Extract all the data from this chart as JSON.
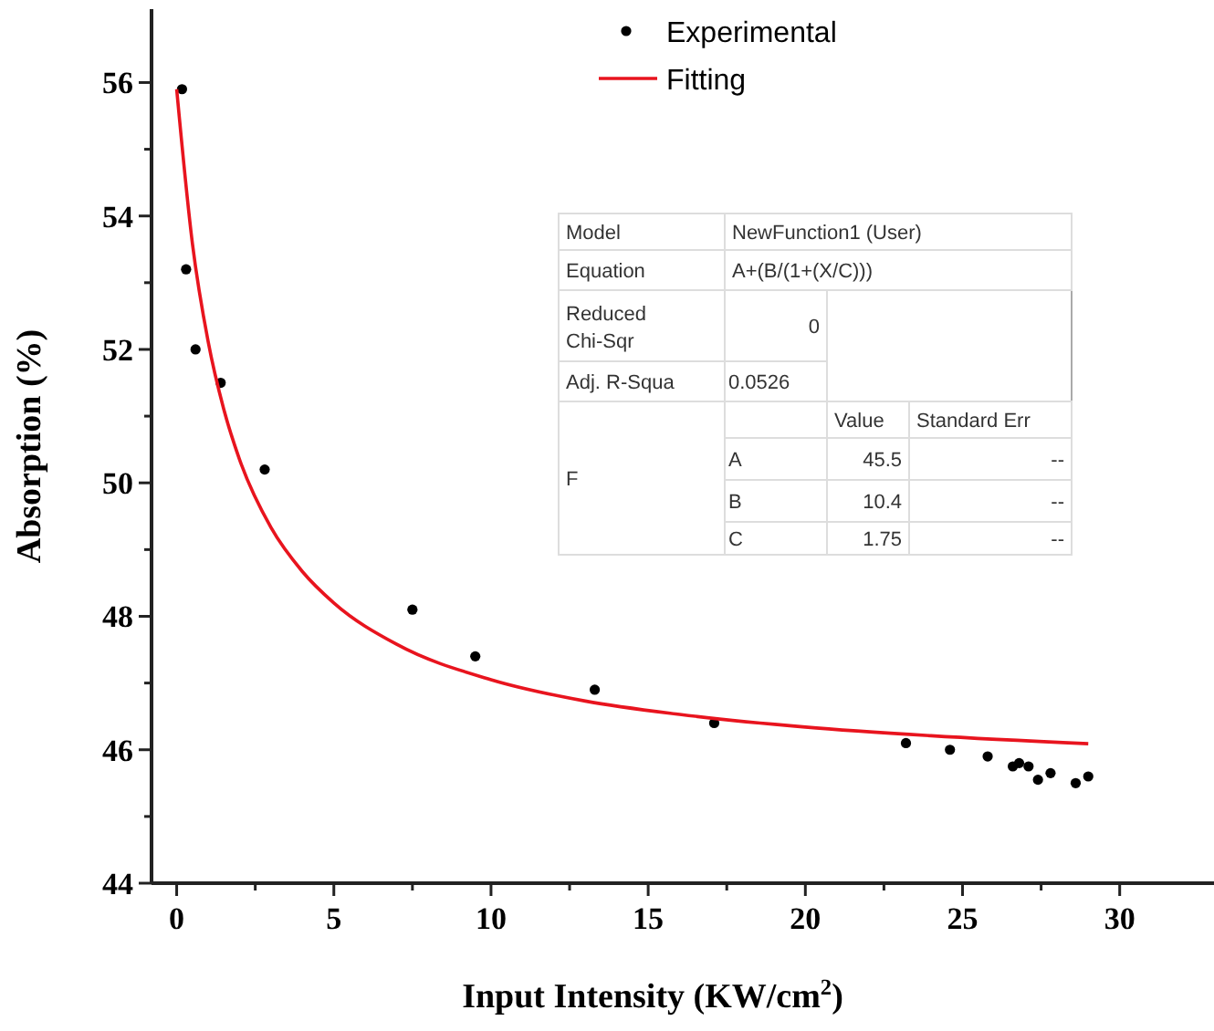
{
  "chart_data": {
    "type": "scatter",
    "xlabel": "Input Intensity (KW/cm$^{2}$)",
    "ylabel": "Absorption (%)",
    "xlim": [
      -0.8,
      33
    ],
    "ylim": [
      44,
      57.1
    ],
    "xticks": [
      0,
      {
        "value": 2.5,
        "label": null
      },
      5,
      {
        "value": 7.5,
        "label": null
      },
      10,
      {
        "value": 12.5,
        "label": null
      },
      15,
      {
        "value": 17.5,
        "label": null
      },
      20,
      {
        "value": 22.5,
        "label": null
      },
      25,
      {
        "value": 27.5,
        "label": null
      },
      30
    ],
    "yticks": [
      44,
      {
        "value": 45,
        "label": null
      },
      46,
      {
        "value": 47,
        "label": null
      },
      48,
      {
        "value": 49,
        "label": null
      },
      50,
      {
        "value": 51,
        "label": null
      },
      52,
      {
        "value": 53,
        "label": null
      },
      54,
      {
        "value": 55,
        "label": null
      },
      56
    ],
    "grid": false,
    "legend": "top",
    "marker": "circle",
    "series": [
      {
        "name": "Experimental",
        "color": "#000000",
        "x": [
          0.17,
          0.3,
          0.6,
          1.4,
          2.8,
          7.5,
          9.5,
          13.3,
          17.1,
          23.2,
          24.6,
          25.8,
          26.6,
          26.8,
          27.1,
          27.4,
          27.8,
          28.6,
          29.0
        ],
        "values": [
          55.9,
          53.2,
          52.0,
          51.5,
          50.2,
          48.1,
          47.4,
          46.9,
          46.4,
          46.1,
          46.0,
          45.9,
          45.75,
          45.8,
          45.75,
          45.55,
          45.65,
          45.5,
          45.6
        ]
      },
      {
        "name": "Fitting",
        "type": "line",
        "color": "#e8141e",
        "marker": "none",
        "line_style": "solid",
        "x": [
          0,
          0.5,
          1,
          1.5,
          2,
          3,
          4,
          5,
          7,
          10,
          13,
          16,
          20,
          24,
          29
        ],
        "values": [
          55.9,
          53.59,
          52.12,
          51.1,
          50.35,
          49.33,
          48.67,
          48.2,
          47.58,
          47.05,
          46.73,
          46.53,
          46.34,
          46.21,
          46.09
        ]
      }
    ],
    "annotations": [
      "Model",
      "NewFunction1 (User)",
      "Equation",
      "A+(B/(1+(X/C)))",
      "Reduced Chi-Sqr",
      "0",
      "Adj. R-Squa",
      "0.0526",
      "Value",
      "Standard Err",
      "F",
      "A",
      "45.5",
      "--",
      "B",
      "10.4",
      "--",
      "C",
      "1.75",
      "--"
    ]
  }
}
